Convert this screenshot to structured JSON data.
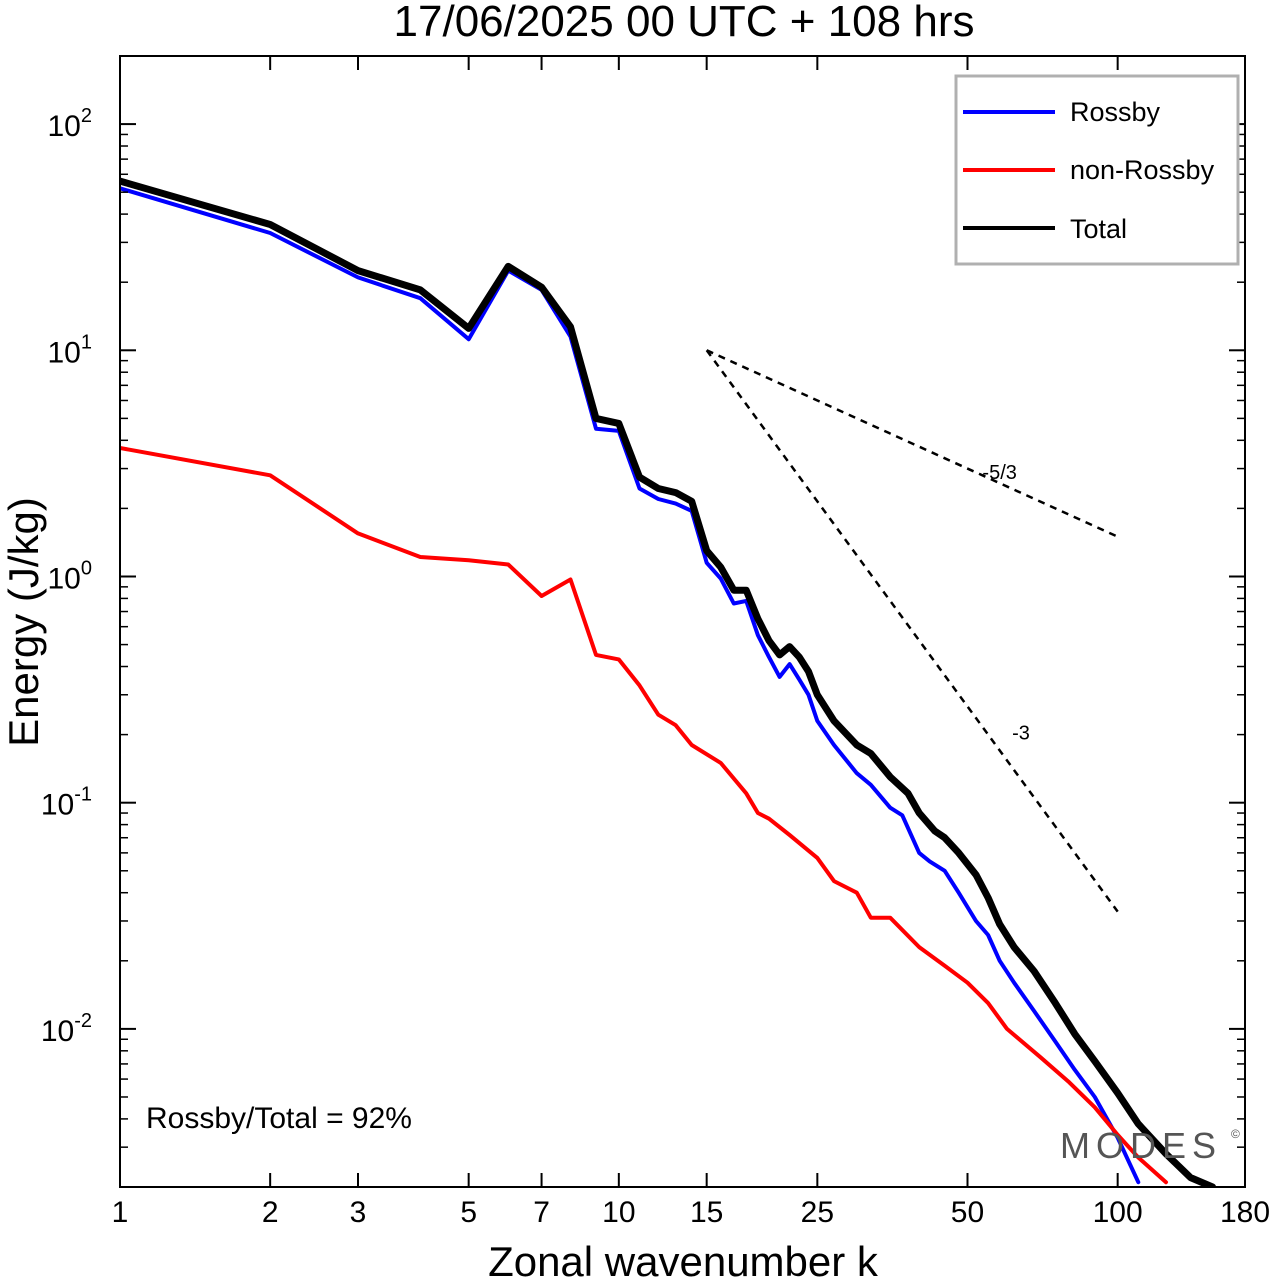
{
  "chart_data": {
    "type": "line",
    "title": "17/06/2025  00 UTC  + 108 hrs",
    "xlabel": "Zonal wavenumber k",
    "ylabel": "Energy (J/kg)",
    "x_scale": "log",
    "y_scale": "log",
    "xlim": [
      1,
      180
    ],
    "ylim": [
      0.002,
      200
    ],
    "x_ticks": [
      1,
      2,
      3,
      5,
      7,
      10,
      15,
      25,
      50,
      100,
      180
    ],
    "x_tick_labels": [
      "1",
      "2",
      "3",
      "5",
      "7",
      "10",
      "15",
      "25",
      "50",
      "100",
      "180"
    ],
    "y_ticks": [
      {
        "value": 0.01,
        "base": "10",
        "exp": "-2"
      },
      {
        "value": 0.1,
        "base": "10",
        "exp": "-1"
      },
      {
        "value": 1,
        "base": "10",
        "exp": "0"
      },
      {
        "value": 10,
        "base": "10",
        "exp": "1"
      },
      {
        "value": 100,
        "base": "10",
        "exp": "2"
      }
    ],
    "legend_position": "top-right",
    "grid": false,
    "series": [
      {
        "name": "Rossby",
        "color": "#0000ff",
        "points": [
          [
            1,
            52
          ],
          [
            2,
            33
          ],
          [
            3,
            21
          ],
          [
            4,
            17
          ],
          [
            5,
            11.2
          ],
          [
            6,
            22.5
          ],
          [
            7,
            18.5
          ],
          [
            8,
            11.5
          ],
          [
            9,
            4.5
          ],
          [
            10,
            4.4
          ],
          [
            11,
            2.45
          ],
          [
            12,
            2.2
          ],
          [
            13,
            2.1
          ],
          [
            14,
            1.95
          ],
          [
            15,
            1.15
          ],
          [
            16,
            0.98
          ],
          [
            17,
            0.76
          ],
          [
            18,
            0.78
          ],
          [
            19,
            0.55
          ],
          [
            20,
            0.44
          ],
          [
            21,
            0.36
          ],
          [
            22,
            0.41
          ],
          [
            23,
            0.35
          ],
          [
            24,
            0.3
          ],
          [
            25,
            0.23
          ],
          [
            27,
            0.18
          ],
          [
            30,
            0.135
          ],
          [
            32,
            0.12
          ],
          [
            35,
            0.095
          ],
          [
            37,
            0.088
          ],
          [
            40,
            0.06
          ],
          [
            42,
            0.055
          ],
          [
            45,
            0.05
          ],
          [
            48,
            0.04
          ],
          [
            52,
            0.03
          ],
          [
            55,
            0.026
          ],
          [
            58,
            0.02
          ],
          [
            62,
            0.016
          ],
          [
            68,
            0.012
          ],
          [
            75,
            0.0088
          ],
          [
            82,
            0.0066
          ],
          [
            90,
            0.005
          ],
          [
            100,
            0.0033
          ],
          [
            110,
            0.0021
          ]
        ]
      },
      {
        "name": "non-Rossby",
        "color": "#ff0000",
        "points": [
          [
            1,
            3.7
          ],
          [
            2,
            2.8
          ],
          [
            3,
            1.55
          ],
          [
            4,
            1.22
          ],
          [
            5,
            1.18
          ],
          [
            6,
            1.13
          ],
          [
            7,
            0.82
          ],
          [
            8,
            0.97
          ],
          [
            9,
            0.45
          ],
          [
            10,
            0.43
          ],
          [
            11,
            0.33
          ],
          [
            12,
            0.245
          ],
          [
            13,
            0.22
          ],
          [
            14,
            0.18
          ],
          [
            16,
            0.15
          ],
          [
            18,
            0.11
          ],
          [
            19,
            0.09
          ],
          [
            20,
            0.085
          ],
          [
            22,
            0.072
          ],
          [
            25,
            0.057
          ],
          [
            27,
            0.045
          ],
          [
            30,
            0.04
          ],
          [
            32,
            0.031
          ],
          [
            35,
            0.031
          ],
          [
            40,
            0.023
          ],
          [
            45,
            0.019
          ],
          [
            50,
            0.016
          ],
          [
            55,
            0.013
          ],
          [
            60,
            0.01
          ],
          [
            70,
            0.0075
          ],
          [
            80,
            0.0058
          ],
          [
            90,
            0.0045
          ],
          [
            100,
            0.0034
          ],
          [
            110,
            0.0027
          ],
          [
            125,
            0.0021
          ]
        ]
      },
      {
        "name": "Total",
        "color": "#000000",
        "points": [
          [
            1,
            56
          ],
          [
            2,
            36
          ],
          [
            3,
            22.5
          ],
          [
            4,
            18.5
          ],
          [
            5,
            12.5
          ],
          [
            6,
            23.5
          ],
          [
            7,
            19
          ],
          [
            8,
            12.7
          ],
          [
            9,
            5
          ],
          [
            10,
            4.75
          ],
          [
            11,
            2.75
          ],
          [
            12,
            2.45
          ],
          [
            13,
            2.35
          ],
          [
            14,
            2.15
          ],
          [
            15,
            1.3
          ],
          [
            16,
            1.1
          ],
          [
            17,
            0.87
          ],
          [
            18,
            0.87
          ],
          [
            19,
            0.65
          ],
          [
            20,
            0.52
          ],
          [
            21,
            0.45
          ],
          [
            22,
            0.49
          ],
          [
            23,
            0.44
          ],
          [
            24,
            0.38
          ],
          [
            25,
            0.3
          ],
          [
            27,
            0.23
          ],
          [
            30,
            0.18
          ],
          [
            32,
            0.165
          ],
          [
            35,
            0.13
          ],
          [
            38,
            0.11
          ],
          [
            40,
            0.09
          ],
          [
            43,
            0.075
          ],
          [
            45,
            0.07
          ],
          [
            48,
            0.06
          ],
          [
            52,
            0.048
          ],
          [
            55,
            0.038
          ],
          [
            58,
            0.029
          ],
          [
            62,
            0.023
          ],
          [
            68,
            0.018
          ],
          [
            75,
            0.013
          ],
          [
            82,
            0.0095
          ],
          [
            90,
            0.0072
          ],
          [
            100,
            0.0052
          ],
          [
            110,
            0.0038
          ],
          [
            125,
            0.0028
          ],
          [
            140,
            0.0022
          ],
          [
            155,
            0.002
          ]
        ]
      }
    ],
    "reference_lines": [
      {
        "label": "-5/3",
        "points": [
          [
            15,
            10
          ],
          [
            100,
            1.5
          ]
        ],
        "label_at": [
          58,
          2.7
        ]
      },
      {
        "label": "-3",
        "points": [
          [
            15,
            10
          ],
          [
            100,
            0.033
          ]
        ],
        "label_at": [
          64,
          0.19
        ]
      }
    ],
    "annotations": [
      {
        "text": "Rossby/Total = 92%"
      }
    ],
    "watermark": {
      "text": "MODES",
      "mark": "©"
    }
  }
}
